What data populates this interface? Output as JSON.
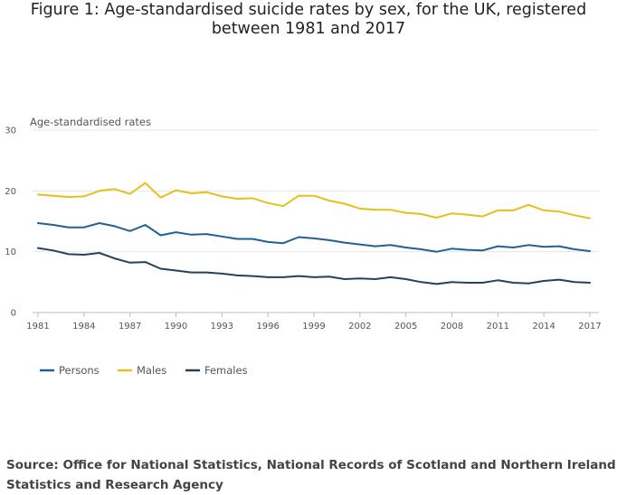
{
  "title_lines": [
    "Figure 1: Age-standardised suicide rates by sex, for the UK, registered",
    "between 1981 and 2017"
  ],
  "source": "Source: Office for National Statistics, National Records of Scotland and Northern Ireland Statistics and Research Agency",
  "chart_data": {
    "type": "line",
    "title": "Figure 1: Age-standardised suicide rates by sex, for the UK, registered between 1981 and 2017",
    "ylabel": "Age-standardised rates",
    "xlabel": "",
    "ylim": [
      0,
      30
    ],
    "yticks": [
      0,
      10,
      20,
      30
    ],
    "xticks": [
      1981,
      1984,
      1987,
      1990,
      1993,
      1996,
      1999,
      2002,
      2005,
      2008,
      2011,
      2014,
      2017
    ],
    "grid": "horizontal",
    "legend_position": "bottom-left",
    "x": [
      1981,
      1982,
      1983,
      1984,
      1985,
      1986,
      1987,
      1988,
      1989,
      1990,
      1991,
      1992,
      1993,
      1994,
      1995,
      1996,
      1997,
      1998,
      1999,
      2000,
      2001,
      2002,
      2003,
      2004,
      2005,
      2006,
      2007,
      2008,
      2009,
      2010,
      2011,
      2012,
      2013,
      2014,
      2015,
      2016,
      2017
    ],
    "series": [
      {
        "name": "Persons",
        "color": "#206095",
        "values": [
          14.7,
          14.4,
          14.0,
          14.0,
          14.7,
          14.2,
          13.4,
          14.4,
          12.7,
          13.2,
          12.8,
          12.9,
          12.5,
          12.1,
          12.1,
          11.6,
          11.4,
          12.4,
          12.2,
          11.9,
          11.5,
          11.2,
          10.9,
          11.1,
          10.7,
          10.4,
          10.0,
          10.5,
          10.3,
          10.2,
          10.9,
          10.7,
          11.1,
          10.8,
          10.9,
          10.4,
          10.1
        ]
      },
      {
        "name": "Males",
        "color": "#e4c11a",
        "values": [
          19.4,
          19.2,
          19.0,
          19.1,
          20.0,
          20.3,
          19.5,
          21.3,
          18.9,
          20.1,
          19.6,
          19.8,
          19.1,
          18.7,
          18.8,
          18.0,
          17.5,
          19.2,
          19.2,
          18.4,
          17.9,
          17.1,
          16.9,
          16.9,
          16.4,
          16.2,
          15.6,
          16.3,
          16.1,
          15.8,
          16.8,
          16.8,
          17.7,
          16.8,
          16.6,
          16.0,
          15.5
        ]
      },
      {
        "name": "Females",
        "color": "#27405b",
        "values": [
          10.6,
          10.2,
          9.6,
          9.5,
          9.8,
          8.9,
          8.2,
          8.3,
          7.2,
          6.9,
          6.6,
          6.6,
          6.4,
          6.1,
          6.0,
          5.8,
          5.8,
          6.0,
          5.8,
          5.9,
          5.5,
          5.6,
          5.5,
          5.8,
          5.5,
          5.0,
          4.7,
          5.0,
          4.9,
          4.9,
          5.3,
          4.9,
          4.8,
          5.2,
          5.4,
          5.0,
          4.9
        ]
      }
    ]
  }
}
